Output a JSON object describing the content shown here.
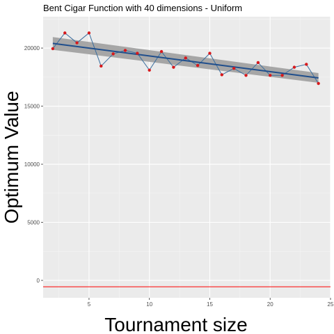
{
  "chart_data": {
    "type": "line",
    "title": "Bent Cigar Function with 40 dimensions -  Uniform",
    "xlabel": "Tournament size",
    "ylabel": "Optimum Value",
    "xlim": [
      1.2,
      25.0
    ],
    "ylim": [
      -1500,
      22700
    ],
    "xticks": [
      5,
      10,
      15,
      20,
      25
    ],
    "yticks": [
      0,
      5000,
      10000,
      15000,
      20000
    ],
    "grid": true,
    "series": [
      {
        "values_x": [
          2,
          3,
          4,
          5,
          6,
          7,
          8,
          9,
          10,
          11,
          12,
          13,
          14,
          15,
          16,
          17,
          18,
          19,
          20,
          21,
          22,
          23,
          24
        ],
        "values_y": [
          19950,
          21300,
          20450,
          21300,
          18450,
          19500,
          19800,
          19550,
          18100,
          19700,
          18350,
          19150,
          18500,
          19550,
          17700,
          18250,
          17650,
          18750,
          17650,
          17650,
          18350,
          18600,
          16950
        ],
        "line_color": "#3b6e9e",
        "point_color": "#d7191c"
      }
    ],
    "trend": {
      "x": [
        2,
        24
      ],
      "y": [
        20400,
        17430
      ],
      "band_upper": [
        20950,
        17850
      ],
      "band_lower": [
        19850,
        17010
      ],
      "line_color": "#1f4e8c",
      "band_color": "#9e9e9e"
    },
    "reference_line": {
      "y": -550,
      "color": "#ff0000"
    }
  }
}
